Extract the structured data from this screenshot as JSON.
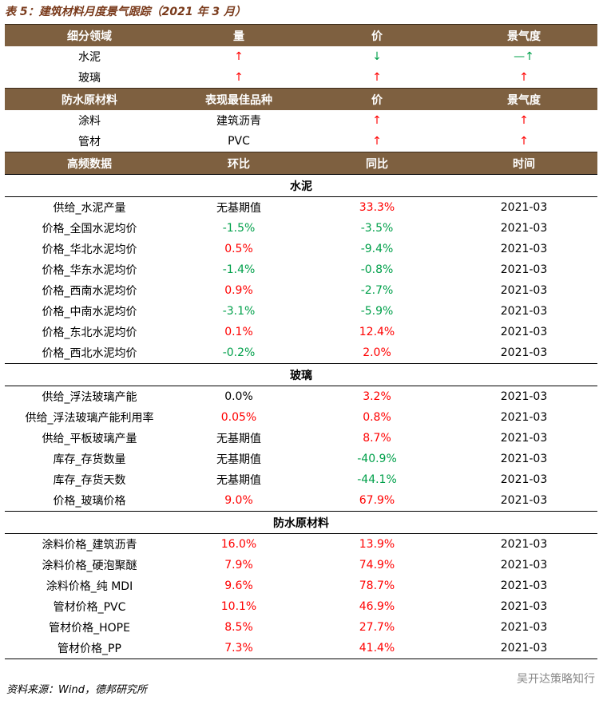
{
  "title": "表 5：建筑材料月度景气跟踪（2021 年 3 月）",
  "table": {
    "groups": [
      {
        "header": [
          "细分领域",
          "量",
          "价",
          "景气度"
        ],
        "rows": [
          [
            "水泥",
            "↑",
            "↓",
            "—↑"
          ],
          [
            "玻璃",
            "↑",
            "↑",
            "↑"
          ]
        ]
      },
      {
        "header": [
          "防水原材料",
          "表现最佳品种",
          "价",
          "景气度"
        ],
        "rows": [
          [
            "涂料",
            "建筑沥青",
            "↑",
            "↑"
          ],
          [
            "管材",
            "PVC",
            "↑",
            "↑"
          ]
        ]
      }
    ],
    "data_header": [
      "高频数据",
      "环比",
      "同比",
      "时间"
    ],
    "sections": [
      {
        "title": "水泥",
        "rows": [
          [
            "供给_水泥产量",
            "无基期值",
            "33.3%",
            "2021-03"
          ],
          [
            "价格_全国水泥均价",
            "-1.5%",
            "-3.5%",
            "2021-03"
          ],
          [
            "价格_华北水泥均价",
            "0.5%",
            "-9.4%",
            "2021-03"
          ],
          [
            "价格_华东水泥均价",
            "-1.4%",
            "-0.8%",
            "2021-03"
          ],
          [
            "价格_西南水泥均价",
            "0.9%",
            "-2.7%",
            "2021-03"
          ],
          [
            "价格_中南水泥均价",
            "-3.1%",
            "-5.9%",
            "2021-03"
          ],
          [
            "价格_东北水泥均价",
            "0.1%",
            "12.4%",
            "2021-03"
          ],
          [
            "价格_西北水泥均价",
            "-0.2%",
            "2.0%",
            "2021-03"
          ]
        ]
      },
      {
        "title": "玻璃",
        "rows": [
          [
            "供给_浮法玻璃产能",
            "0.0%",
            "3.2%",
            "2021-03"
          ],
          [
            "供给_浮法玻璃产能利用率",
            "0.05%",
            "0.8%",
            "2021-03"
          ],
          [
            "供给_平板玻璃产量",
            "无基期值",
            "8.7%",
            "2021-03"
          ],
          [
            "库存_存货数量",
            "无基期值",
            "-40.9%",
            "2021-03"
          ],
          [
            "库存_存货天数",
            "无基期值",
            "-44.1%",
            "2021-03"
          ],
          [
            "价格_玻璃价格",
            "9.0%",
            "67.9%",
            "2021-03"
          ]
        ]
      },
      {
        "title": "防水原材料",
        "rows": [
          [
            "涂料价格_建筑沥青",
            "16.0%",
            "13.9%",
            "2021-03"
          ],
          [
            "涂料价格_硬泡聚醚",
            "7.9%",
            "74.9%",
            "2021-03"
          ],
          [
            "涂料价格_纯 MDI",
            "9.6%",
            "78.7%",
            "2021-03"
          ],
          [
            "管材价格_PVC",
            "10.1%",
            "46.9%",
            "2021-03"
          ],
          [
            "管材价格_HOPE",
            "8.5%",
            "27.7%",
            "2021-03"
          ],
          [
            "管材价格_PP",
            "7.3%",
            "41.4%",
            "2021-03"
          ]
        ]
      }
    ]
  },
  "source": "资料来源：Wind，德邦研究所",
  "watermark": "吴开达策略知行"
}
